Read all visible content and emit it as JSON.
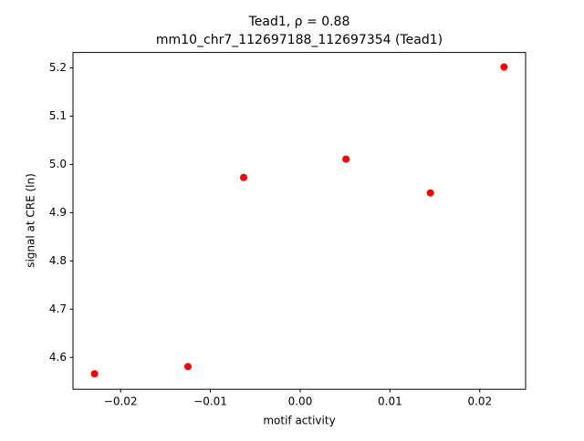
{
  "chart_data": {
    "type": "scatter",
    "title": "Tead1, ρ = 0.88",
    "subtitle": "mm10_chr7_112697188_112697354 (Tead1)",
    "x_label": "motif activity",
    "y_label": "signal at CRE (ln)",
    "x": [
      -0.0229,
      -0.0125,
      -0.0063,
      0.0051,
      0.0145,
      0.0227
    ],
    "values": [
      4.566,
      4.581,
      4.973,
      5.011,
      4.941,
      5.202
    ],
    "color": "#ff0000",
    "xlim": [
      -0.0253,
      0.0251
    ],
    "ylim": [
      4.534,
      5.232
    ],
    "xticks": [
      {
        "value": -0.02,
        "label": "−0.02"
      },
      {
        "value": -0.01,
        "label": "−0.01"
      },
      {
        "value": 0,
        "label": "0.00"
      },
      0.01,
      0.02
    ],
    "yticks": [
      4.6,
      4.7,
      4.8,
      4.9,
      {
        "value": 5,
        "label": "5.0"
      },
      5.1,
      5.2
    ],
    "grid": false
  }
}
